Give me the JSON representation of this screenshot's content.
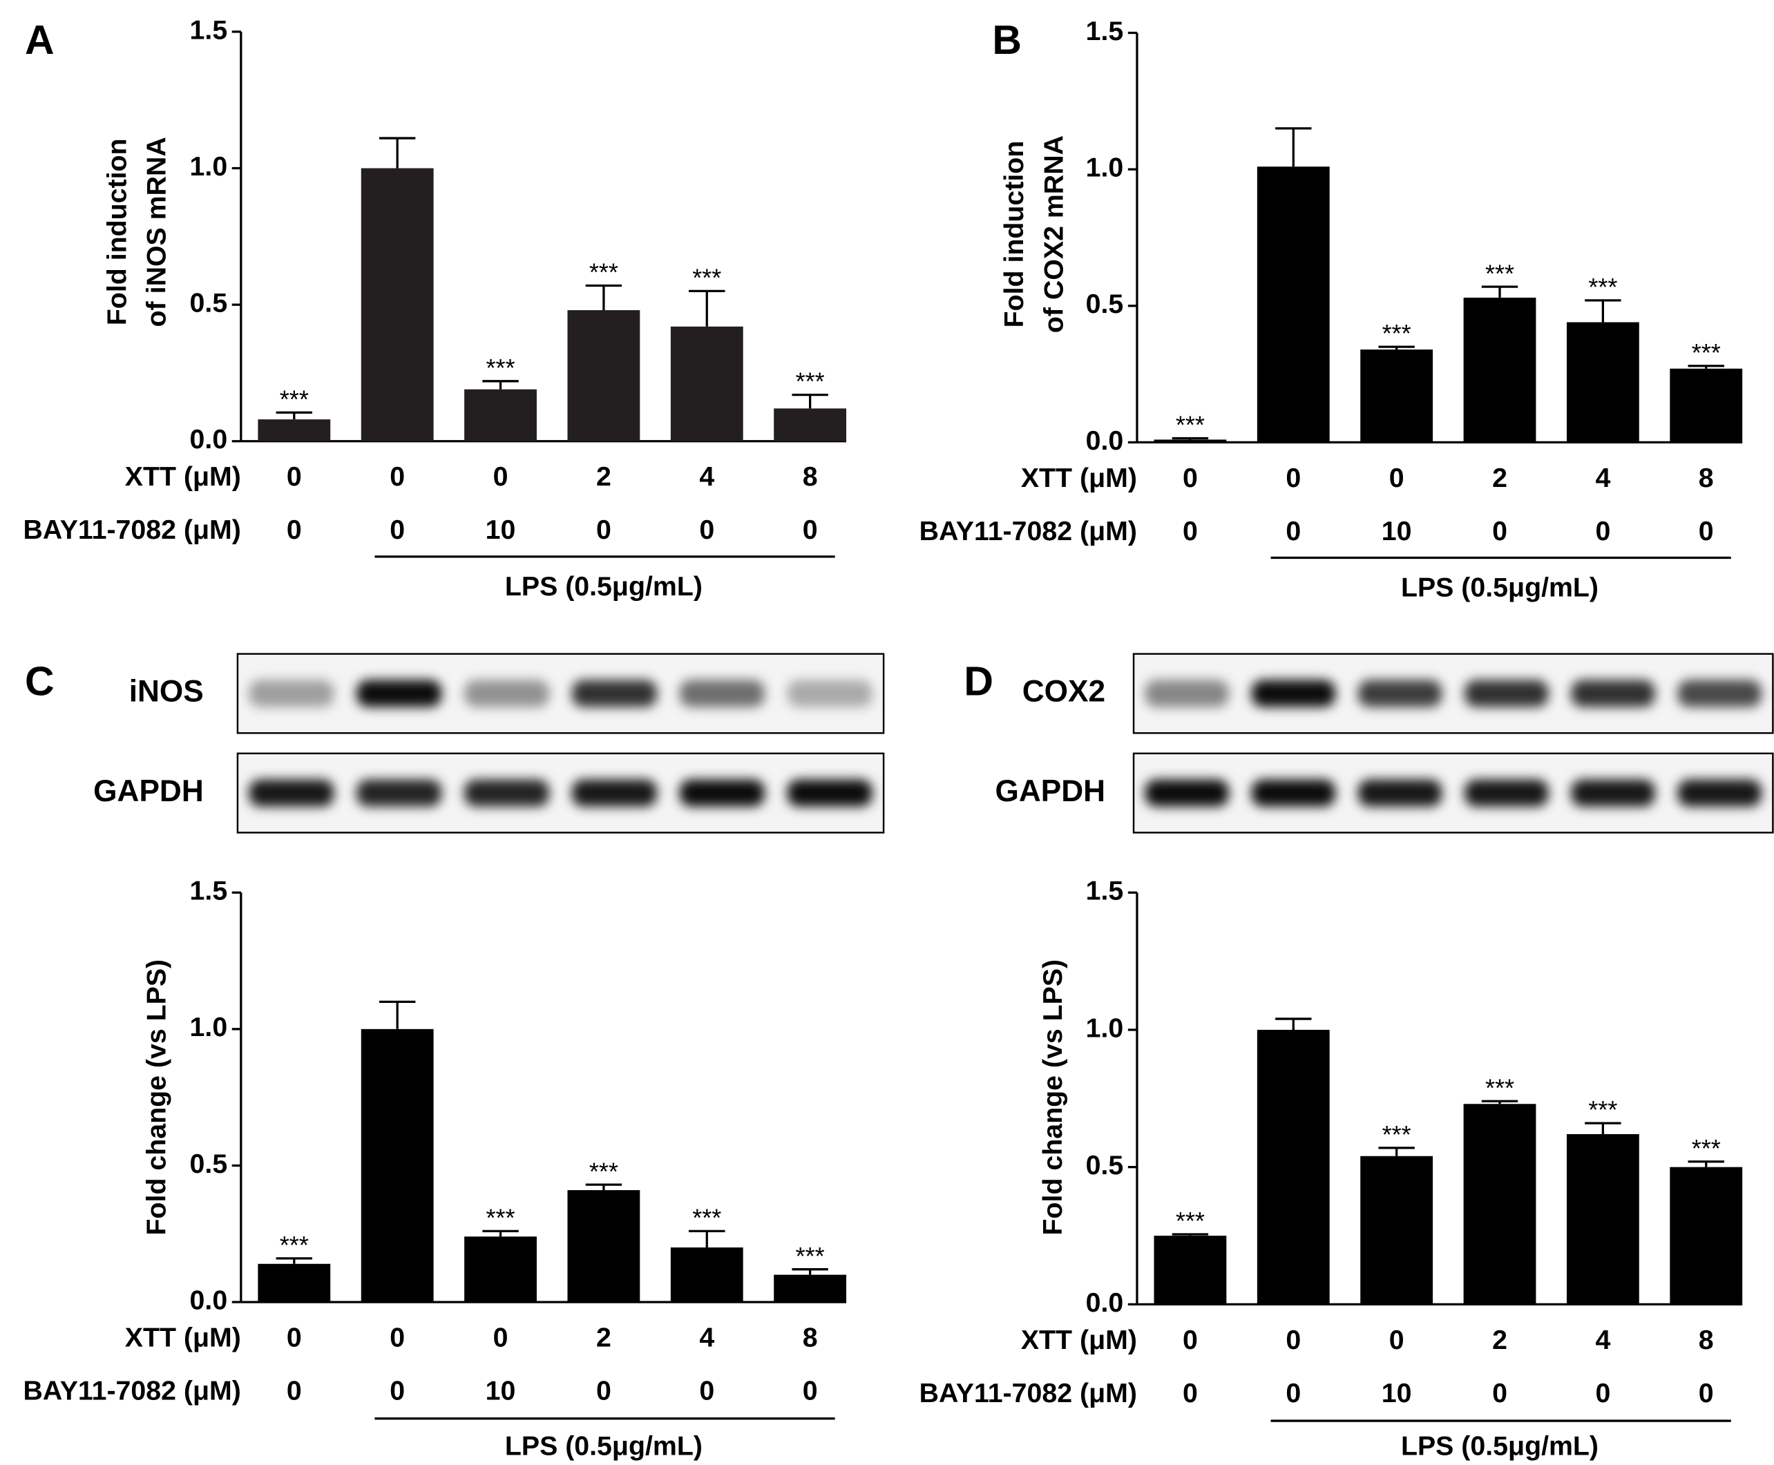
{
  "chart_data": [
    {
      "type": "bar",
      "panel": "A",
      "ylabel": [
        "Fold induction",
        "of iNOS mRNA"
      ],
      "color": "#231f20",
      "row_labels": [
        "XTT (μM)",
        "BAY11-7082 (μM)"
      ],
      "xtt": [
        "0",
        "0",
        "0",
        "2",
        "4",
        "8"
      ],
      "bay": [
        "0",
        "0",
        "10",
        "0",
        "0",
        "0"
      ],
      "group_label": "LPS (0.5μg/mL)",
      "values": [
        0.08,
        1.0,
        0.19,
        0.48,
        0.42,
        0.12
      ],
      "errors": [
        0.025,
        0.11,
        0.03,
        0.09,
        0.13,
        0.05
      ],
      "annotations": [
        "***",
        null,
        "***",
        "***",
        "***",
        "***"
      ],
      "ylim": [
        0,
        1.5
      ],
      "yticks": [
        {
          "value": 0,
          "label": "0.0"
        },
        {
          "value": 0.5,
          "label": "0.5"
        },
        {
          "value": 1,
          "label": "1.0"
        },
        {
          "value": 1.5,
          "label": "1.5"
        }
      ]
    },
    {
      "type": "bar",
      "panel": "B",
      "ylabel": [
        "Fold induction",
        "of COX2 mRNA"
      ],
      "color": "#000000",
      "row_labels": [
        "XTT (μM)",
        "BAY11-7082 (μM)"
      ],
      "xtt": [
        "0",
        "0",
        "0",
        "2",
        "4",
        "8"
      ],
      "bay": [
        "0",
        "0",
        "10",
        "0",
        "0",
        "0"
      ],
      "group_label": "LPS (0.5μg/mL)",
      "values": [
        0.01,
        1.01,
        0.34,
        0.53,
        0.44,
        0.27
      ],
      "errors": [
        0.005,
        0.14,
        0.01,
        0.04,
        0.08,
        0.01
      ],
      "annotations": [
        "***",
        null,
        "***",
        "***",
        "***",
        "***"
      ],
      "ylim": [
        0,
        1.5
      ],
      "yticks": [
        {
          "value": 0,
          "label": "0.0"
        },
        {
          "value": 0.5,
          "label": "0.5"
        },
        {
          "value": 1,
          "label": "1.0"
        },
        {
          "value": 1.5,
          "label": "1.5"
        }
      ]
    },
    {
      "type": "bar",
      "panel": "C",
      "blot_labels": [
        "iNOS",
        "GAPDH"
      ],
      "ylabel": [
        "Fold change (vs LPS)"
      ],
      "color": "#000000",
      "row_labels": [
        "XTT (μM)",
        "BAY11-7082 (μM)"
      ],
      "xtt": [
        "0",
        "0",
        "0",
        "2",
        "4",
        "8"
      ],
      "bay": [
        "0",
        "0",
        "10",
        "0",
        "0",
        "0"
      ],
      "group_label": "LPS (0.5μg/mL)",
      "values": [
        0.14,
        1.0,
        0.24,
        0.41,
        0.2,
        0.1
      ],
      "errors": [
        0.02,
        0.1,
        0.02,
        0.02,
        0.06,
        0.02
      ],
      "annotations": [
        "***",
        null,
        "***",
        "***",
        "***",
        "***"
      ],
      "ylim": [
        0,
        1.5
      ],
      "yticks": [
        {
          "value": 0,
          "label": "0.0"
        },
        {
          "value": 0.5,
          "label": "0.5"
        },
        {
          "value": 1,
          "label": "1.0"
        },
        {
          "value": 1.5,
          "label": "1.5"
        }
      ]
    },
    {
      "type": "bar",
      "panel": "D",
      "blot_labels": [
        "COX2",
        "GAPDH"
      ],
      "ylabel": [
        "Fold change (vs LPS)"
      ],
      "color": "#000000",
      "row_labels": [
        "XTT (μM)",
        "BAY11-7082 (μM)"
      ],
      "xtt": [
        "0",
        "0",
        "0",
        "2",
        "4",
        "8"
      ],
      "bay": [
        "0",
        "0",
        "10",
        "0",
        "0",
        "0"
      ],
      "group_label": "LPS (0.5μg/mL)",
      "values": [
        0.25,
        1.0,
        0.54,
        0.73,
        0.62,
        0.5
      ],
      "errors": [
        0.005,
        0.04,
        0.03,
        0.01,
        0.04,
        0.02
      ],
      "annotations": [
        "***",
        null,
        "***",
        "***",
        "***",
        "***"
      ],
      "ylim": [
        0,
        1.5
      ],
      "yticks": [
        {
          "value": 0,
          "label": "0.0"
        },
        {
          "value": 0.5,
          "label": "0.5"
        },
        {
          "value": 1,
          "label": "1.0"
        },
        {
          "value": 1.5,
          "label": "1.5"
        }
      ]
    }
  ]
}
